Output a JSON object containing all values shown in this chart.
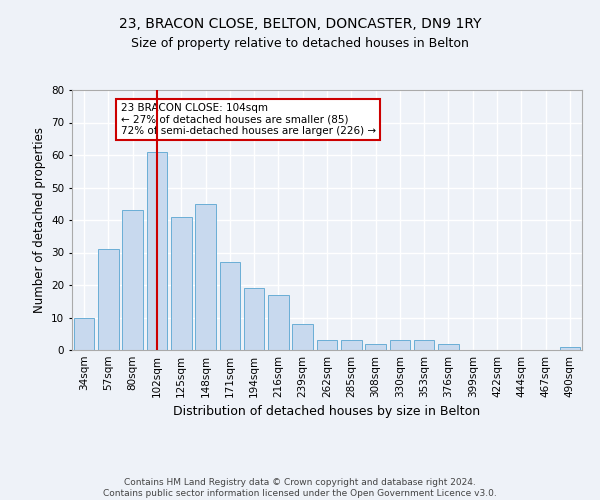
{
  "title": "23, BRACON CLOSE, BELTON, DONCASTER, DN9 1RY",
  "subtitle": "Size of property relative to detached houses in Belton",
  "xlabel": "Distribution of detached houses by size in Belton",
  "ylabel": "Number of detached properties",
  "categories": [
    "34sqm",
    "57sqm",
    "80sqm",
    "102sqm",
    "125sqm",
    "148sqm",
    "171sqm",
    "194sqm",
    "216sqm",
    "239sqm",
    "262sqm",
    "285sqm",
    "308sqm",
    "330sqm",
    "353sqm",
    "376sqm",
    "399sqm",
    "422sqm",
    "444sqm",
    "467sqm",
    "490sqm"
  ],
  "values": [
    10,
    31,
    43,
    61,
    41,
    45,
    27,
    19,
    17,
    8,
    3,
    3,
    2,
    3,
    3,
    2,
    0,
    0,
    0,
    0,
    1
  ],
  "bar_color": "#c8d9ee",
  "bar_edge_color": "#6aaed6",
  "vline_x": 3,
  "vline_color": "#cc0000",
  "annotation_text": "23 BRACON CLOSE: 104sqm\n← 27% of detached houses are smaller (85)\n72% of semi-detached houses are larger (226) →",
  "annotation_box_color": "#ffffff",
  "annotation_box_edge": "#cc0000",
  "ylim": [
    0,
    80
  ],
  "yticks": [
    0,
    10,
    20,
    30,
    40,
    50,
    60,
    70,
    80
  ],
  "footer": "Contains HM Land Registry data © Crown copyright and database right 2024.\nContains public sector information licensed under the Open Government Licence v3.0.",
  "bg_color": "#eef2f8",
  "plot_bg_color": "#eef2f8",
  "grid_color": "#ffffff",
  "title_fontsize": 10,
  "subtitle_fontsize": 9,
  "xlabel_fontsize": 9,
  "ylabel_fontsize": 8.5,
  "tick_fontsize": 7.5,
  "footer_fontsize": 6.5
}
